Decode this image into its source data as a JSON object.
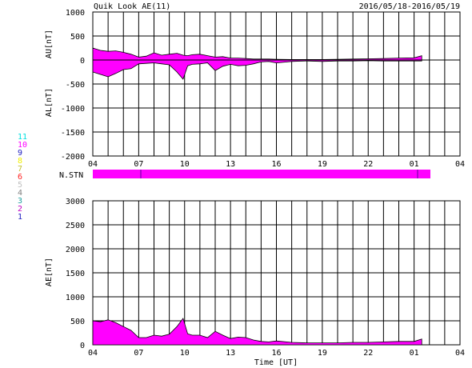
{
  "header": {
    "title": "Quik Look AE(11)",
    "date_range": "2016/05/18-2016/05/19"
  },
  "stations_legend": [
    {
      "label": "11",
      "color": "#00e0e0"
    },
    {
      "label": "10",
      "color": "#ff00ff"
    },
    {
      "label": "9",
      "color": "#2020c0"
    },
    {
      "label": "8",
      "color": "#f0f000"
    },
    {
      "label": "7",
      "color": "#c0c030"
    },
    {
      "label": "6",
      "color": "#ff2020"
    },
    {
      "label": "5",
      "color": "#c0c0c0"
    },
    {
      "label": "4",
      "color": "#808080"
    },
    {
      "label": "3",
      "color": "#20a0a0"
    },
    {
      "label": "2",
      "color": "#c000c0"
    },
    {
      "label": "1",
      "color": "#2020c0"
    }
  ],
  "nstn_label": "N.STN",
  "fill_color": "#ff00ff",
  "chart_data": [
    {
      "type": "area",
      "ylabel_top": "AU[nT]",
      "ylabel_bottom": "AL[nT]",
      "ylim": [
        -2000,
        1000
      ],
      "y_ticks": [
        "1000",
        "500",
        "0",
        "-500",
        "-1000",
        "-1500",
        "-2000"
      ],
      "x_ticks": [
        "04",
        "07",
        "10",
        "13",
        "16",
        "19",
        "22",
        "01",
        "04"
      ],
      "grid": true,
      "x_hours": [
        4,
        4.5,
        5,
        5.5,
        6,
        6.5,
        7,
        7.5,
        8,
        8.5,
        9,
        9.5,
        9.9,
        10.2,
        10.5,
        11,
        11.5,
        12,
        12.5,
        13,
        13.5,
        14,
        14.5,
        15,
        15.5,
        16,
        17,
        18,
        19,
        20,
        21,
        22,
        23,
        24,
        25,
        25.5
      ],
      "series": [
        {
          "role": "AU",
          "values": [
            250,
            200,
            180,
            190,
            160,
            120,
            60,
            80,
            150,
            100,
            120,
            140,
            100,
            90,
            110,
            120,
            90,
            60,
            70,
            40,
            40,
            30,
            20,
            20,
            20,
            15,
            10,
            10,
            10,
            15,
            20,
            25,
            30,
            40,
            45,
            90
          ]
        },
        {
          "role": "AL",
          "values": [
            -250,
            -300,
            -350,
            -280,
            -200,
            -180,
            -80,
            -70,
            -60,
            -80,
            -100,
            -250,
            -400,
            -120,
            -90,
            -80,
            -60,
            -220,
            -130,
            -90,
            -120,
            -110,
            -80,
            -40,
            -30,
            -60,
            -30,
            -20,
            -30,
            -20,
            -20,
            -15,
            -20,
            -20,
            -20,
            -20
          ]
        }
      ]
    },
    {
      "type": "area",
      "ylabel": "AE[nT]",
      "ylim": [
        0,
        3000
      ],
      "y_ticks": [
        "3000",
        "2500",
        "2000",
        "1500",
        "1000",
        "500",
        "0"
      ],
      "x_ticks": [
        "04",
        "07",
        "10",
        "13",
        "16",
        "19",
        "22",
        "01",
        "04"
      ],
      "xlabel": "Time [UT]",
      "grid": true,
      "x_hours": [
        4,
        4.5,
        5,
        5.5,
        6,
        6.5,
        7,
        7.5,
        8,
        8.5,
        9,
        9.5,
        9.9,
        10.2,
        10.5,
        11,
        11.5,
        12,
        12.5,
        13,
        13.5,
        14,
        14.5,
        15,
        15.5,
        16,
        17,
        18,
        19,
        20,
        21,
        22,
        23,
        24,
        25,
        25.5
      ],
      "values": [
        500,
        480,
        520,
        460,
        380,
        300,
        150,
        150,
        200,
        180,
        220,
        380,
        550,
        230,
        200,
        200,
        150,
        280,
        200,
        130,
        160,
        150,
        100,
        70,
        60,
        80,
        50,
        40,
        40,
        40,
        50,
        50,
        60,
        70,
        70,
        120
      ]
    }
  ]
}
